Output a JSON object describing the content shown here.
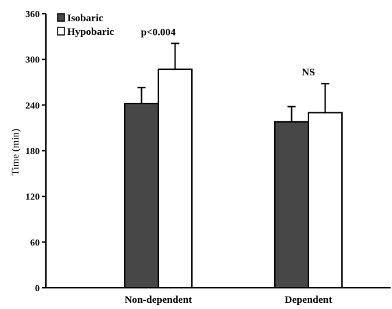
{
  "chart_data": {
    "type": "bar",
    "title": "",
    "xlabel": "",
    "ylabel": "Time (min)",
    "ylim": [
      0,
      360
    ],
    "yticks": [
      "0",
      "60",
      "120",
      "180",
      "240",
      "300",
      "360"
    ],
    "categories": [
      "Non-dependent",
      "Dependent"
    ],
    "series": [
      {
        "name": "Isobaric",
        "values": [
          242,
          218
        ],
        "errors": [
          21,
          20
        ],
        "color": "#474747"
      },
      {
        "name": "Hypobaric",
        "values": [
          287,
          230
        ],
        "errors": [
          34,
          38
        ],
        "color": "#ffffff"
      }
    ],
    "annotations": [
      "p<0.004",
      "NS"
    ],
    "legend_position": "top-left",
    "grid": false
  }
}
